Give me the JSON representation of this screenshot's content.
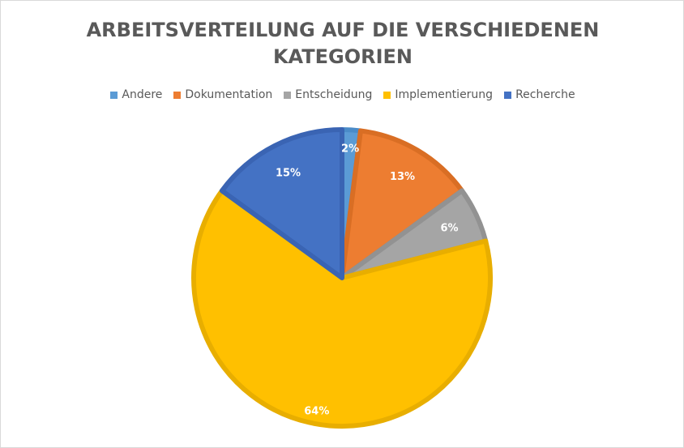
{
  "chart_data": {
    "type": "pie",
    "title": "ARBEITSVERTEILUNG AUF DIE VERSCHIEDENEN KATEGORIEN",
    "legend_position": "top",
    "categories": [
      "Andere",
      "Dokumentation",
      "Entscheidung",
      "Implementierung",
      "Recherche"
    ],
    "values": [
      2,
      13,
      6,
      64,
      15
    ],
    "labels": [
      "2%",
      "13%",
      "6%",
      "64%",
      "15%"
    ],
    "colors": [
      "#5b9bd5",
      "#ed7d31",
      "#a5a5a5",
      "#ffc000",
      "#4472c4"
    ],
    "border_colors": [
      "#4a8bc8",
      "#d96e24",
      "#929292",
      "#e8ae00",
      "#3a64b3"
    ]
  }
}
